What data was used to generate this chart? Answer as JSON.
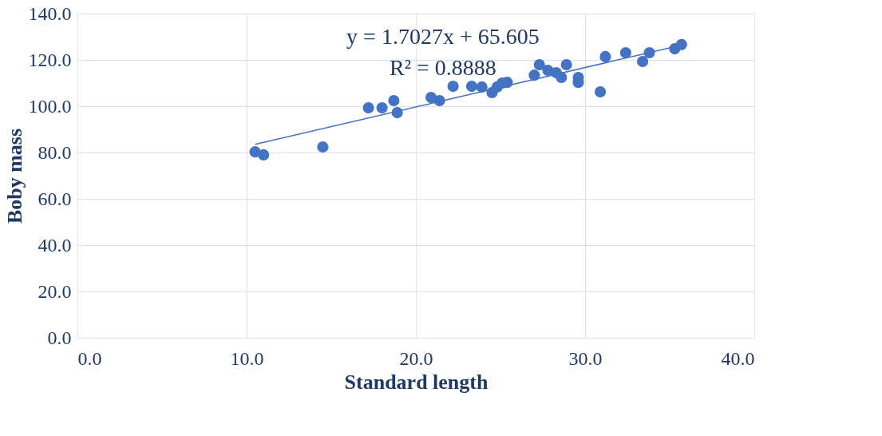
{
  "chart_data": {
    "type": "scatter",
    "xlabel": "Standard length",
    "ylabel": "Boby mass",
    "xlim": [
      0,
      40
    ],
    "xticks": [
      {
        "value": 0,
        "label": "0.0"
      },
      {
        "value": 10,
        "label": "10.0"
      },
      {
        "value": 20,
        "label": "20.0"
      },
      {
        "value": 30,
        "label": "30.0"
      },
      {
        "value": 40,
        "label": "40.0"
      }
    ],
    "ylim": [
      0,
      140
    ],
    "yticks": [
      {
        "value": 0,
        "label": "0.0"
      },
      {
        "value": 20,
        "label": "20.0"
      },
      {
        "value": 40,
        "label": "40.0"
      },
      {
        "value": 60,
        "label": "60.0"
      },
      {
        "value": 80,
        "label": "80.0"
      },
      {
        "value": 100,
        "label": "100.0"
      },
      {
        "value": 120,
        "label": "120.0"
      },
      {
        "value": 140,
        "label": "140.0"
      }
    ],
    "grid": true,
    "marker": "circle",
    "annotations": [
      "y = 1.7027x + 65.605",
      "R² = 0.8888"
    ],
    "series": [
      {
        "color": "#4472c4",
        "x": [
          10.5,
          11.0,
          14.5,
          17.2,
          18.0,
          18.7,
          18.9,
          20.9,
          21.4,
          22.2,
          23.3,
          23.9,
          24.5,
          24.8,
          25.1,
          25.4,
          27.0,
          27.3,
          27.8,
          28.3,
          28.6,
          28.9,
          29.6,
          29.6,
          30.9,
          31.2,
          32.4,
          33.4,
          33.8,
          35.3,
          35.7
        ],
        "values": [
          80.3,
          79.0,
          82.4,
          99.3,
          99.3,
          102.4,
          97.2,
          103.8,
          102.4,
          108.6,
          108.6,
          108.3,
          105.9,
          108.3,
          110.0,
          110.3,
          113.4,
          117.9,
          115.5,
          114.5,
          112.4,
          117.9,
          112.4,
          110.3,
          106.2,
          121.4,
          123.1,
          119.3,
          123.1,
          124.8,
          126.6
        ]
      },
      {
        "type": "line",
        "color": "#4472c4",
        "x": [
          10.5,
          35.7
        ],
        "values": [
          83.5,
          126.4
        ],
        "line_style": "solid",
        "marker": "none"
      }
    ]
  }
}
